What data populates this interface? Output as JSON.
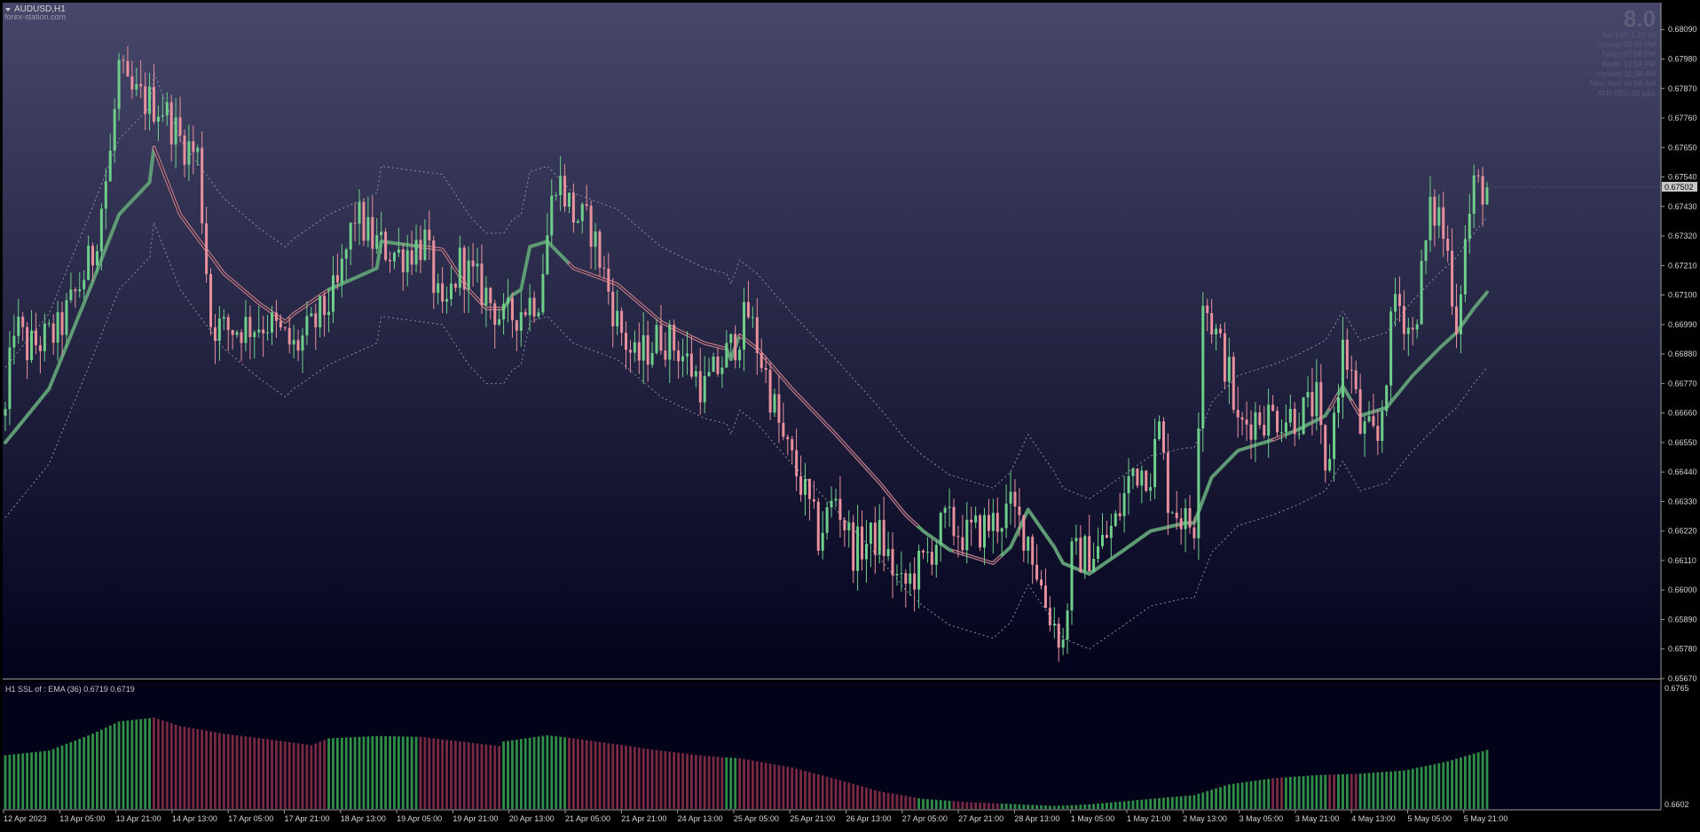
{
  "window": {
    "symbol_label": "AUDUSD,H1",
    "source_label": "forex-station.com"
  },
  "info_panel": {
    "big_number": "8.0",
    "rows": [
      "Bar Left    1:22:10",
      "Sydney    05:58 PM",
      "Tokyo    07:58 PM",
      "Berlin    12:58 PM",
      "London    11:58 AM",
      "New York    06:58 AM",
      "ATR (20):  20 pips"
    ]
  },
  "current_price": "0.67502",
  "indicator": {
    "label": "H1 SSL of : EMA (36)  0.6719 0.6719",
    "axis_max": "0.6765",
    "axis_min": "0.6602"
  },
  "colors": {
    "bg_top": "#46476a",
    "bg_bottom": "#02021c",
    "bull": "#6fcf8a",
    "bear": "#e8909c",
    "ssl_up": "#5e9a74",
    "ssl_down": "#b07582",
    "hist_up": "#2f8f46",
    "hist_down": "#7a2a40",
    "axis_text": "#d4d4d4",
    "price_tag_bg": "#c8c8c8"
  },
  "chart_data": {
    "type": "candlestick",
    "instrument": "AUDUSD",
    "timeframe": "H1",
    "y_ticks": [
      "0.68090",
      "0.67980",
      "0.67870",
      "0.67760",
      "0.67650",
      "0.67540",
      "0.67430",
      "0.67320",
      "0.67210",
      "0.67100",
      "0.66990",
      "0.66880",
      "0.66770",
      "0.66660",
      "0.66550",
      "0.66440",
      "0.66330",
      "0.66220",
      "0.66110",
      "0.66000",
      "0.65890",
      "0.65780",
      "0.65670"
    ],
    "ylim": [
      0.6567,
      0.6819
    ],
    "x_ticks": [
      "12 Apr 2023",
      "13 Apr 05:00",
      "13 Apr 21:00",
      "14 Apr 13:00",
      "17 Apr 05:00",
      "17 Apr 21:00",
      "18 Apr 13:00",
      "19 Apr 05:00",
      "19 Apr 21:00",
      "20 Apr 13:00",
      "21 Apr 05:00",
      "21 Apr 21:00",
      "24 Apr 13:00",
      "25 Apr 05:00",
      "25 Apr 21:00",
      "26 Apr 13:00",
      "27 Apr 05:00",
      "27 Apr 21:00",
      "28 Apr 13:00",
      "1 May 05:00",
      "1 May 21:00",
      "2 May 13:00",
      "3 May 05:00",
      "3 May 21:00",
      "4 May 13:00",
      "5 May 05:00",
      "5 May 21:00"
    ],
    "close_path": [
      [
        0,
        0.6665
      ],
      [
        2,
        0.67
      ],
      [
        5,
        0.669
      ],
      [
        12,
        0.6696
      ],
      [
        16,
        0.671
      ],
      [
        20,
        0.6725
      ],
      [
        24,
        0.6762
      ],
      [
        26,
        0.6795
      ],
      [
        28,
        0.6785
      ],
      [
        36,
        0.678
      ],
      [
        40,
        0.6768
      ],
      [
        44,
        0.6762
      ],
      [
        47,
        0.67
      ],
      [
        50,
        0.6697
      ],
      [
        60,
        0.67
      ],
      [
        66,
        0.669
      ],
      [
        70,
        0.6697
      ],
      [
        76,
        0.6712
      ],
      [
        80,
        0.674
      ],
      [
        84,
        0.673
      ],
      [
        90,
        0.6725
      ],
      [
        96,
        0.673
      ],
      [
        100,
        0.67
      ],
      [
        104,
        0.6722
      ],
      [
        110,
        0.671
      ],
      [
        114,
        0.67
      ],
      [
        118,
        0.6705
      ],
      [
        122,
        0.671
      ],
      [
        126,
        0.6755
      ],
      [
        130,
        0.674
      ],
      [
        134,
        0.6735
      ],
      [
        140,
        0.67
      ],
      [
        144,
        0.6685
      ],
      [
        150,
        0.6695
      ],
      [
        154,
        0.669
      ],
      [
        160,
        0.6675
      ],
      [
        166,
        0.669
      ],
      [
        170,
        0.6703
      ],
      [
        174,
        0.668
      ],
      [
        178,
        0.6655
      ],
      [
        182,
        0.664
      ],
      [
        186,
        0.662
      ],
      [
        190,
        0.6635
      ],
      [
        194,
        0.6615
      ],
      [
        200,
        0.662
      ],
      [
        205,
        0.66
      ],
      [
        210,
        0.661
      ],
      [
        215,
        0.6625
      ],
      [
        220,
        0.662
      ],
      [
        226,
        0.6625
      ],
      [
        230,
        0.663
      ],
      [
        234,
        0.662
      ],
      [
        238,
        0.6595
      ],
      [
        242,
        0.658
      ],
      [
        244,
        0.6612
      ],
      [
        250,
        0.6615
      ],
      [
        254,
        0.6625
      ],
      [
        258,
        0.6645
      ],
      [
        262,
        0.6645
      ],
      [
        264,
        0.666
      ],
      [
        266,
        0.6635
      ],
      [
        270,
        0.6625
      ],
      [
        272,
        0.6625
      ],
      [
        274,
        0.671
      ],
      [
        276,
        0.67
      ],
      [
        280,
        0.668
      ],
      [
        282,
        0.666
      ],
      [
        286,
        0.6665
      ],
      [
        290,
        0.6665
      ],
      [
        296,
        0.6665
      ],
      [
        300,
        0.667
      ],
      [
        302,
        0.664
      ],
      [
        306,
        0.669
      ],
      [
        308,
        0.668
      ],
      [
        310,
        0.666
      ],
      [
        314,
        0.6655
      ],
      [
        318,
        0.671
      ],
      [
        322,
        0.6695
      ],
      [
        326,
        0.674
      ],
      [
        328,
        0.674
      ],
      [
        330,
        0.6725
      ],
      [
        332,
        0.67
      ],
      [
        334,
        0.673
      ],
      [
        336,
        0.675
      ],
      [
        339,
        0.675
      ]
    ],
    "ssl_line": [
      [
        0,
        0.6655
      ],
      [
        10,
        0.6675
      ],
      [
        20,
        0.6715
      ],
      [
        26,
        0.674
      ],
      [
        33,
        0.6752
      ],
      [
        34,
        0.6765
      ],
      [
        40,
        0.674
      ],
      [
        50,
        0.6718
      ],
      [
        58,
        0.6707
      ],
      [
        64,
        0.67
      ],
      [
        66,
        0.6703
      ],
      [
        74,
        0.6712
      ],
      [
        85,
        0.672
      ],
      [
        86,
        0.673
      ],
      [
        100,
        0.6727
      ],
      [
        106,
        0.6712
      ],
      [
        110,
        0.6705
      ],
      [
        114,
        0.6705
      ],
      [
        116,
        0.671
      ],
      [
        118,
        0.6712
      ],
      [
        120,
        0.6728
      ],
      [
        124,
        0.673
      ],
      [
        130,
        0.672
      ],
      [
        140,
        0.6714
      ],
      [
        150,
        0.67
      ],
      [
        160,
        0.6692
      ],
      [
        165,
        0.669
      ],
      [
        166,
        0.6686
      ],
      [
        168,
        0.6695
      ],
      [
        172,
        0.669
      ],
      [
        180,
        0.6675
      ],
      [
        190,
        0.6658
      ],
      [
        200,
        0.664
      ],
      [
        206,
        0.6628
      ],
      [
        210,
        0.6622
      ],
      [
        216,
        0.6615
      ],
      [
        226,
        0.661
      ],
      [
        230,
        0.6616
      ],
      [
        234,
        0.663
      ],
      [
        240,
        0.6616
      ],
      [
        242,
        0.661
      ],
      [
        248,
        0.6606
      ],
      [
        256,
        0.6615
      ],
      [
        262,
        0.6622
      ],
      [
        270,
        0.6625
      ],
      [
        272,
        0.6625
      ],
      [
        276,
        0.6642
      ],
      [
        282,
        0.6652
      ],
      [
        290,
        0.6656
      ],
      [
        296,
        0.666
      ],
      [
        302,
        0.6665
      ],
      [
        306,
        0.6676
      ],
      [
        310,
        0.6665
      ],
      [
        316,
        0.6668
      ],
      [
        322,
        0.668
      ],
      [
        328,
        0.669
      ],
      [
        332,
        0.6696
      ],
      [
        336,
        0.6705
      ],
      [
        339,
        0.6711
      ]
    ],
    "ssl_state": [
      [
        0,
        33,
        "up"
      ],
      [
        34,
        73,
        "down"
      ],
      [
        74,
        94,
        "up"
      ],
      [
        95,
        113,
        "down"
      ],
      [
        114,
        128,
        "up"
      ],
      [
        129,
        164,
        "down"
      ],
      [
        165,
        167,
        "up"
      ],
      [
        168,
        208,
        "down"
      ],
      [
        209,
        216,
        "up"
      ],
      [
        217,
        227,
        "down"
      ],
      [
        228,
        240,
        "up"
      ],
      [
        241,
        339,
        "up"
      ],
      [
        290,
        292,
        "down"
      ],
      [
        303,
        304,
        "down"
      ],
      [
        308,
        309,
        "down"
      ]
    ],
    "ssl_histogram": [
      [
        0,
        0.6672
      ],
      [
        10,
        0.6678
      ],
      [
        20,
        0.67
      ],
      [
        26,
        0.6716
      ],
      [
        34,
        0.6721
      ],
      [
        40,
        0.671
      ],
      [
        50,
        0.67
      ],
      [
        60,
        0.6693
      ],
      [
        70,
        0.6685
      ],
      [
        74,
        0.6694
      ],
      [
        85,
        0.6697
      ],
      [
        95,
        0.6696
      ],
      [
        104,
        0.669
      ],
      [
        113,
        0.6684
      ],
      [
        114,
        0.669
      ],
      [
        124,
        0.6698
      ],
      [
        130,
        0.6694
      ],
      [
        140,
        0.6686
      ],
      [
        150,
        0.6678
      ],
      [
        160,
        0.6671
      ],
      [
        168,
        0.6668
      ],
      [
        180,
        0.6656
      ],
      [
        190,
        0.6641
      ],
      [
        200,
        0.6625
      ],
      [
        210,
        0.6615
      ],
      [
        220,
        0.6611
      ],
      [
        232,
        0.6608
      ],
      [
        240,
        0.6606
      ],
      [
        248,
        0.6608
      ],
      [
        256,
        0.6612
      ],
      [
        266,
        0.6617
      ],
      [
        272,
        0.662
      ],
      [
        280,
        0.6634
      ],
      [
        290,
        0.6642
      ],
      [
        300,
        0.6646
      ],
      [
        310,
        0.6648
      ],
      [
        320,
        0.6652
      ],
      [
        330,
        0.6664
      ],
      [
        339,
        0.6679
      ]
    ]
  }
}
